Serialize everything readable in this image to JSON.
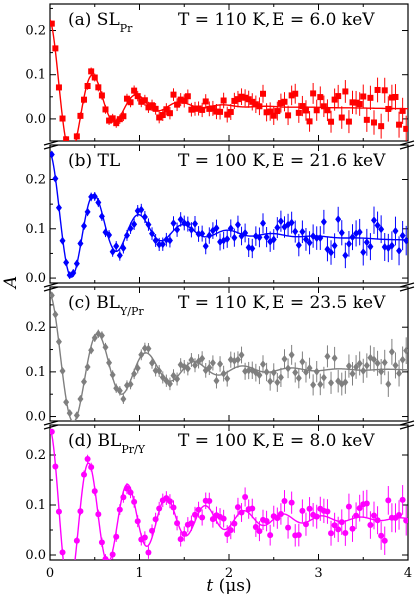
{
  "chart_data": {
    "type": "scatter",
    "shared_x": {
      "label": "t (μs)",
      "label_main": "t",
      "label_unit": " (μs)",
      "range": [
        0,
        4
      ],
      "ticks": [
        "0",
        "1",
        "2",
        "3",
        "4"
      ]
    },
    "ylabel": "A",
    "panels": [
      {
        "id": "a",
        "label_prefix": "(a) SL",
        "label_sub": "Pr",
        "temperature": "T = 110 K,",
        "energy": "E = 6.0 keV",
        "color": "#ff0000",
        "marker": "square",
        "ylim": [
          -0.05,
          0.26
        ],
        "yticks": [
          "0.0",
          "0.1",
          "0.2"
        ],
        "ytick_values": [
          0.0,
          0.1,
          0.2
        ],
        "fit": {
          "base": 0.035,
          "amp": 0.19,
          "freq": 2.05,
          "decay": 2.2,
          "beat_amp": 0.0,
          "beat_decay": 1.0,
          "beat_freq": 1.0,
          "trend": -0.003
        }
      },
      {
        "id": "b",
        "label_prefix": "(b) TL",
        "label_sub": "",
        "temperature": "T = 100 K,",
        "energy": "E = 21.6 keV",
        "color": "#0000ff",
        "marker": "diamond",
        "ylim": [
          -0.01,
          0.27
        ],
        "yticks": [
          "0.0",
          "0.1",
          "0.2"
        ],
        "ytick_values": [
          0.0,
          0.1,
          0.2
        ],
        "fit": {
          "base": 0.105,
          "amp": 0.15,
          "freq": 2.0,
          "decay": 1.6,
          "beat_amp": 0.0,
          "beat_decay": 1.0,
          "beat_freq": 1.0,
          "trend": -0.007
        }
      },
      {
        "id": "c",
        "label_prefix": "(c) BL",
        "label_sub": "Y/Pr",
        "temperature": "T = 110 K,",
        "energy": "E = 23.5 keV",
        "color": "#7f7f7f",
        "marker": "diamond",
        "ylim": [
          -0.01,
          0.29
        ],
        "yticks": [
          "0.0",
          "0.1",
          "0.2"
        ],
        "ytick_values": [
          0.0,
          0.1,
          0.2
        ],
        "fit": {
          "base": 0.105,
          "amp": 0.17,
          "freq": 1.85,
          "decay": 1.4,
          "beat_amp": 0.0,
          "beat_decay": 1.0,
          "beat_freq": 1.0,
          "trend": 0.0
        }
      },
      {
        "id": "d",
        "label_prefix": "(d) BL",
        "label_sub": "Pr/Y",
        "temperature": "T = 100 K,",
        "energy": "E = 8.0 keV",
        "color": "#ff00ff",
        "marker": "circle",
        "ylim": [
          -0.01,
          0.26
        ],
        "yticks": [
          "0.0",
          "0.1",
          "0.2"
        ],
        "ytick_values": [
          0.0,
          0.1,
          0.2
        ],
        "fit": {
          "base": 0.072,
          "amp": 0.18,
          "freq": 2.3,
          "decay": 1.1,
          "beat_amp": 0.0,
          "beat_decay": 1.0,
          "beat_freq": 1.0,
          "trend": 0.0
        }
      }
    ]
  }
}
